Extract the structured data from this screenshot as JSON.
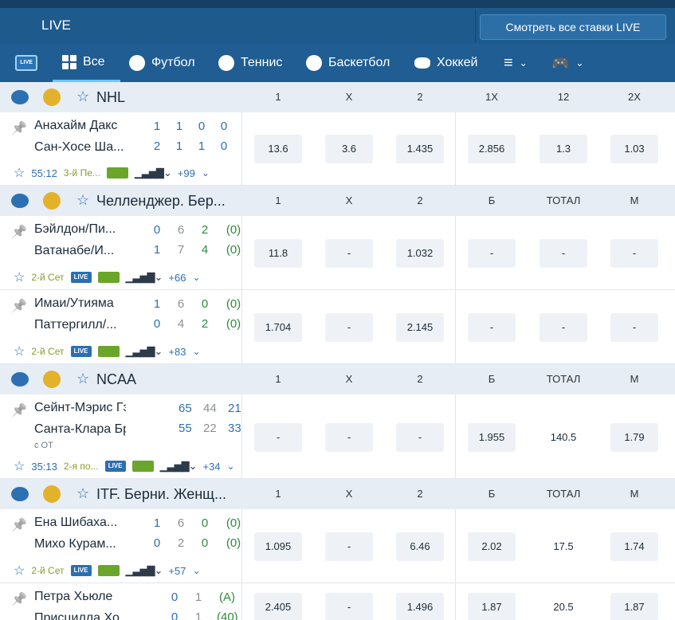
{
  "header": {
    "live_label": "LIVE",
    "watch_all_button": "Смотреть все ставки LIVE"
  },
  "nav": {
    "live_badge": "LIVE",
    "items": [
      {
        "label": "Все"
      },
      {
        "label": "Футбол"
      },
      {
        "label": "Теннис"
      },
      {
        "label": "Баскетбол"
      },
      {
        "label": "Хоккей"
      }
    ]
  },
  "sections": [
    {
      "title": "NHL",
      "cols": [
        "1",
        "X",
        "2",
        "1X",
        "12",
        "2X"
      ],
      "matches": [
        {
          "team1": "Анахайм Дакс",
          "team2": "Сан-Хосе Ша...",
          "s1": [
            "1",
            "1",
            "0",
            "0"
          ],
          "s2": [
            "2",
            "1",
            "1",
            "0"
          ],
          "time": "55:12",
          "period": "3-й Пе...",
          "more": "+99",
          "odds": [
            "13.6",
            "3.6",
            "1.435",
            "2.856",
            "1.3",
            "1.03"
          ]
        }
      ]
    },
    {
      "title": "Челленджер. Бер...",
      "cols": [
        "1",
        "X",
        "2",
        "Б",
        "ТОТАЛ",
        "М"
      ],
      "matches": [
        {
          "team1": "Бэйлдон/Пи...",
          "team2": "Ватанабе/И...",
          "s1": [
            "0",
            "6",
            "2",
            "(0)"
          ],
          "s2": [
            "1",
            "7",
            "4",
            "(0)"
          ],
          "period": "2-й Сет",
          "live": "LIVE",
          "more": "+66",
          "odds": [
            "11.8",
            "-",
            "1.032",
            "-",
            "-",
            "-"
          ]
        },
        {
          "team1": "Имаи/Утияма",
          "team2": "Паттергилл/...",
          "s1": [
            "1",
            "6",
            "0",
            "(0)"
          ],
          "s2": [
            "0",
            "4",
            "2",
            "(0)"
          ],
          "period": "2-й Сет",
          "live": "LIVE",
          "more": "+83",
          "odds": [
            "1.704",
            "-",
            "2.145",
            "-",
            "-",
            "-"
          ]
        }
      ]
    },
    {
      "title": "NCAA",
      "cols": [
        "1",
        "X",
        "2",
        "Б",
        "ТОТАЛ",
        "М"
      ],
      "matches": [
        {
          "team1": "Сейнт-Мэрис Гэ...",
          "team2": "Санта-Клара Бр...",
          "s1": [
            "65",
            "44",
            "21"
          ],
          "s2": [
            "55",
            "22",
            "33"
          ],
          "note": "с ОТ",
          "time": "35:13",
          "period": "2-я по...",
          "live": "LIVE",
          "more": "+34",
          "odds": [
            "-",
            "-",
            "-",
            "1.955",
            "140.5",
            "1.79"
          ]
        }
      ]
    },
    {
      "title": "ITF. Берни. Женщ...",
      "cols": [
        "1",
        "X",
        "2",
        "Б",
        "ТОТАЛ",
        "М"
      ],
      "matches": [
        {
          "team1": "Ена Шибаха...",
          "team2": "Михо Курам...",
          "s1": [
            "1",
            "6",
            "0",
            "(0)"
          ],
          "s2": [
            "0",
            "2",
            "0",
            "(0)"
          ],
          "period": "2-й Сет",
          "live": "LIVE",
          "more": "+57",
          "odds": [
            "1.095",
            "-",
            "6.46",
            "2.02",
            "17.5",
            "1.74"
          ]
        },
        {
          "team1": "Петра Хьюле",
          "team2": "Присцилла Хо...",
          "s1": [
            "0",
            "1",
            "(A)"
          ],
          "s2": [
            "0",
            "1",
            "(40)"
          ],
          "odds": [
            "2.405",
            "-",
            "1.496",
            "1.87",
            "20.5",
            "1.87"
          ]
        }
      ]
    }
  ]
}
